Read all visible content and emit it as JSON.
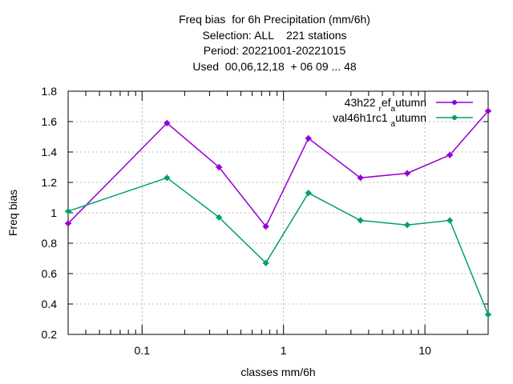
{
  "title_lines": [
    "Freq bias  for 6h Precipitation (mm/6h)",
    "Selection: ALL    221 stations",
    "Period: 20221001-20221015",
    "Used  00,06,12,18  + 06 09 ... 48"
  ],
  "chart_data": {
    "type": "line",
    "title": "Freq bias  for 6h Precipitation (mm/6h)",
    "xlabel": "classes mm/6h",
    "ylabel": "Freq bias",
    "x_scale": "log",
    "xlim": [
      0.03,
      28
    ],
    "ylim": [
      0.2,
      1.8
    ],
    "grid": true,
    "legend_position": "top-right",
    "x": [
      0.03,
      0.15,
      0.35,
      0.75,
      1.5,
      3.5,
      7.5,
      15,
      28
    ],
    "x_ticks": [
      {
        "value": 0.1,
        "label": "0.1"
      },
      {
        "value": 1,
        "label": "1"
      },
      {
        "value": 10,
        "label": "10"
      }
    ],
    "y_ticks": [
      {
        "value": 0.2,
        "label": "0.2"
      },
      {
        "value": 0.4,
        "label": "0.4"
      },
      {
        "value": 0.6,
        "label": "0.6"
      },
      {
        "value": 0.8,
        "label": "0.8"
      },
      {
        "value": 1.0,
        "label": "1"
      },
      {
        "value": 1.2,
        "label": "1.2"
      },
      {
        "value": 1.4,
        "label": "1.4"
      },
      {
        "value": 1.6,
        "label": "1.6"
      },
      {
        "value": 1.8,
        "label": "1.8"
      }
    ],
    "series": [
      {
        "name": "43h22_ref_autumn",
        "legend_main": "43h22",
        "legend_parts": [
          {
            "text": "43h22 ",
            "sub": false
          },
          {
            "text": "r",
            "sub": true
          },
          {
            "text": "ef",
            "sub": false
          },
          {
            "text": "a",
            "sub": true
          },
          {
            "text": "utumn",
            "sub": false
          }
        ],
        "color": "#9400d3",
        "values": [
          0.93,
          1.59,
          1.3,
          0.91,
          1.49,
          1.23,
          1.26,
          1.38,
          1.67
        ]
      },
      {
        "name": "val46h1rc1_autumn",
        "legend_parts": [
          {
            "text": "val46h1rc1 ",
            "sub": false
          },
          {
            "text": "a",
            "sub": true
          },
          {
            "text": "utumn",
            "sub": false
          }
        ],
        "color": "#009e73",
        "values": [
          1.01,
          1.23,
          0.97,
          0.67,
          1.13,
          0.95,
          0.92,
          0.95,
          0.33
        ]
      }
    ]
  }
}
